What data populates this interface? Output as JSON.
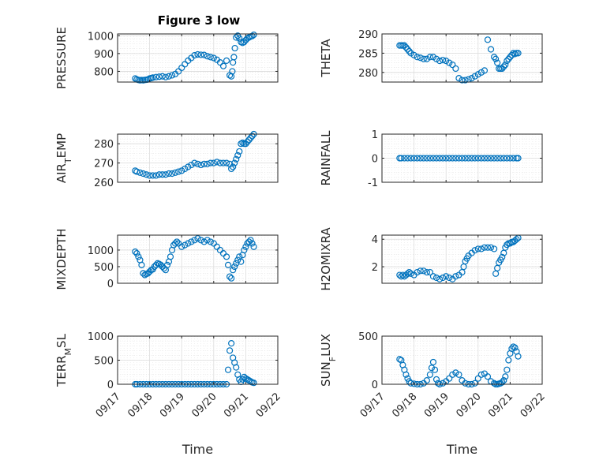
{
  "title": "Figure 3 low",
  "x_tick_labels": [
    "09/17",
    "09/18",
    "09/19",
    "09/20",
    "09/21",
    "09/22"
  ],
  "marker_color": "#0072BD",
  "chart_data": [
    {
      "type": "scatter",
      "ylabel": "PRESSURE",
      "xlabel": "",
      "title": "Figure 3 low",
      "xlim": [
        0,
        5
      ],
      "ylim": [
        740,
        1010
      ],
      "yticks": [
        800,
        900,
        1000
      ],
      "grid": true,
      "x": [
        0.55,
        0.6,
        0.65,
        0.7,
        0.75,
        0.8,
        0.85,
        0.9,
        0.95,
        1.0,
        1.05,
        1.1,
        1.2,
        1.3,
        1.4,
        1.5,
        1.6,
        1.7,
        1.8,
        1.9,
        2.0,
        2.1,
        2.2,
        2.3,
        2.4,
        2.5,
        2.6,
        2.7,
        2.8,
        2.9,
        3.0,
        3.1,
        3.2,
        3.3,
        3.4,
        3.5,
        3.55,
        3.58,
        3.6,
        3.63,
        3.66,
        3.7,
        3.75,
        3.8,
        3.85,
        3.9,
        3.95,
        4.0,
        4.05,
        4.1,
        4.15,
        4.2,
        4.25
      ],
      "y": [
        760,
        755,
        752,
        750,
        751,
        750,
        752,
        753,
        755,
        760,
        762,
        765,
        768,
        770,
        772,
        768,
        772,
        778,
        785,
        800,
        820,
        840,
        860,
        875,
        890,
        895,
        893,
        892,
        885,
        880,
        875,
        865,
        850,
        830,
        860,
        778,
        772,
        800,
        850,
        880,
        930,
        990,
        1000,
        985,
        965,
        960,
        965,
        975,
        985,
        990,
        995,
        998,
        1005
      ]
    },
    {
      "type": "scatter",
      "ylabel": "THETA",
      "xlabel": "",
      "xlim": [
        0,
        5
      ],
      "ylim": [
        277.5,
        290
      ],
      "yticks": [
        280,
        285,
        290
      ],
      "grid": true,
      "x": [
        0.55,
        0.6,
        0.65,
        0.7,
        0.75,
        0.8,
        0.85,
        0.9,
        1.0,
        1.1,
        1.2,
        1.3,
        1.4,
        1.5,
        1.6,
        1.7,
        1.8,
        1.9,
        2.0,
        2.1,
        2.2,
        2.3,
        2.4,
        2.5,
        2.6,
        2.7,
        2.8,
        2.9,
        3.0,
        3.1,
        3.2,
        3.3,
        3.4,
        3.5,
        3.55,
        3.6,
        3.65,
        3.7,
        3.75,
        3.8,
        3.85,
        3.9,
        3.95,
        4.0,
        4.05,
        4.1,
        4.15,
        4.2,
        4.25
      ],
      "y": [
        287,
        287,
        287,
        287,
        286.5,
        286,
        285.5,
        285,
        284.5,
        284,
        283.8,
        283.5,
        283.5,
        284,
        284,
        283.5,
        283,
        283.2,
        283,
        282.5,
        282,
        281,
        278.5,
        278,
        278,
        278.2,
        278.5,
        279,
        279.5,
        280,
        280.5,
        288.5,
        286,
        284,
        283.5,
        282.5,
        281,
        281,
        281,
        281.5,
        282,
        283,
        283.5,
        284,
        284.5,
        285,
        284.8,
        285,
        285
      ]
    },
    {
      "type": "scatter",
      "ylabel": "AIR_TEMP",
      "xlabel": "",
      "xlim": [
        0,
        5
      ],
      "ylim": [
        260,
        285
      ],
      "yticks": [
        260,
        270,
        280
      ],
      "grid": true,
      "x": [
        0.55,
        0.6,
        0.7,
        0.8,
        0.9,
        1.0,
        1.1,
        1.2,
        1.3,
        1.4,
        1.5,
        1.6,
        1.7,
        1.8,
        1.9,
        2.0,
        2.1,
        2.2,
        2.3,
        2.4,
        2.5,
        2.6,
        2.7,
        2.8,
        2.9,
        3.0,
        3.1,
        3.2,
        3.3,
        3.4,
        3.5,
        3.55,
        3.6,
        3.65,
        3.7,
        3.75,
        3.8,
        3.85,
        3.9,
        3.95,
        4.0,
        4.05,
        4.1,
        4.15,
        4.2,
        4.25
      ],
      "y": [
        266,
        265.5,
        265,
        264.5,
        264,
        263.5,
        263.5,
        263.5,
        264,
        264,
        264,
        264.5,
        264.5,
        265,
        265.5,
        266,
        267,
        268,
        269,
        270,
        269.5,
        269,
        269.5,
        269.5,
        270,
        270,
        270.5,
        270,
        270,
        270,
        269.5,
        267,
        268,
        270,
        272,
        274,
        276,
        280,
        280.5,
        280,
        280,
        281,
        282,
        283,
        284,
        285
      ]
    },
    {
      "type": "scatter",
      "ylabel": "RAINFALL",
      "xlabel": "",
      "xlim": [
        0,
        5
      ],
      "ylim": [
        -1,
        1
      ],
      "yticks": [
        -1,
        0,
        1
      ],
      "grid": true,
      "x": [
        0.55,
        0.6,
        0.7,
        0.8,
        0.9,
        1.0,
        1.1,
        1.2,
        1.3,
        1.4,
        1.5,
        1.6,
        1.7,
        1.8,
        1.9,
        2.0,
        2.1,
        2.2,
        2.3,
        2.4,
        2.5,
        2.6,
        2.7,
        2.8,
        2.9,
        3.0,
        3.1,
        3.2,
        3.3,
        3.4,
        3.5,
        3.6,
        3.7,
        3.8,
        3.9,
        4.0,
        4.1,
        4.2,
        4.25
      ],
      "y": [
        0,
        0,
        0,
        0,
        0,
        0,
        0,
        0,
        0,
        0,
        0,
        0,
        0,
        0,
        0,
        0,
        0,
        0,
        0,
        0,
        0,
        0,
        0,
        0,
        0,
        0,
        0,
        0,
        0,
        0,
        0,
        0,
        0,
        0,
        0,
        0,
        0,
        0,
        0
      ]
    },
    {
      "type": "scatter",
      "ylabel": "MIXDEPTH",
      "xlabel": "",
      "xlim": [
        0,
        5
      ],
      "ylim": [
        0,
        1450
      ],
      "yticks": [
        0,
        500,
        1000
      ],
      "grid": true,
      "x": [
        0.55,
        0.6,
        0.65,
        0.7,
        0.75,
        0.8,
        0.85,
        0.9,
        0.95,
        1.0,
        1.05,
        1.1,
        1.15,
        1.2,
        1.25,
        1.3,
        1.35,
        1.4,
        1.45,
        1.5,
        1.55,
        1.6,
        1.65,
        1.7,
        1.75,
        1.8,
        1.85,
        1.9,
        2.0,
        2.1,
        2.2,
        2.3,
        2.4,
        2.5,
        2.6,
        2.7,
        2.8,
        2.9,
        3.0,
        3.1,
        3.2,
        3.3,
        3.4,
        3.45,
        3.5,
        3.55,
        3.6,
        3.65,
        3.7,
        3.75,
        3.8,
        3.85,
        3.9,
        3.95,
        4.0,
        4.05,
        4.1,
        4.15,
        4.2,
        4.25
      ],
      "y": [
        950,
        900,
        800,
        700,
        550,
        300,
        250,
        280,
        300,
        350,
        400,
        420,
        500,
        550,
        600,
        580,
        550,
        500,
        450,
        400,
        550,
        650,
        800,
        1000,
        1150,
        1200,
        1250,
        1200,
        1100,
        1150,
        1200,
        1250,
        1300,
        1350,
        1300,
        1250,
        1300,
        1250,
        1200,
        1100,
        1000,
        900,
        800,
        550,
        200,
        150,
        400,
        500,
        600,
        700,
        800,
        650,
        850,
        1000,
        1100,
        1200,
        1250,
        1300,
        1200,
        1100
      ]
    },
    {
      "type": "scatter",
      "ylabel": "H2OMIXRA",
      "xlabel": "",
      "xlim": [
        0,
        5
      ],
      "ylim": [
        0.8,
        4.3
      ],
      "yticks": [
        2,
        4
      ],
      "grid": true,
      "x": [
        0.55,
        0.6,
        0.65,
        0.7,
        0.75,
        0.8,
        0.85,
        0.9,
        1.0,
        1.1,
        1.2,
        1.3,
        1.4,
        1.5,
        1.6,
        1.7,
        1.8,
        1.9,
        2.0,
        2.1,
        2.2,
        2.3,
        2.4,
        2.5,
        2.55,
        2.6,
        2.65,
        2.7,
        2.8,
        2.9,
        3.0,
        3.1,
        3.2,
        3.3,
        3.4,
        3.5,
        3.55,
        3.6,
        3.65,
        3.7,
        3.75,
        3.8,
        3.85,
        3.9,
        3.95,
        4.0,
        4.05,
        4.1,
        4.15,
        4.2,
        4.25
      ],
      "y": [
        1.4,
        1.3,
        1.4,
        1.3,
        1.4,
        1.5,
        1.6,
        1.5,
        1.4,
        1.6,
        1.7,
        1.7,
        1.6,
        1.6,
        1.3,
        1.2,
        1.1,
        1.2,
        1.3,
        1.2,
        1.1,
        1.3,
        1.4,
        1.6,
        2.0,
        2.4,
        2.6,
        2.8,
        3.0,
        3.2,
        3.3,
        3.3,
        3.4,
        3.4,
        3.4,
        3.3,
        1.5,
        1.9,
        2.3,
        2.5,
        2.7,
        3.0,
        3.4,
        3.6,
        3.7,
        3.7,
        3.8,
        3.8,
        3.9,
        4.0,
        4.1
      ]
    },
    {
      "type": "scatter",
      "ylabel": "TERR_MSL",
      "xlabel": "Time",
      "xlim": [
        0,
        5
      ],
      "ylim": [
        0,
        1000
      ],
      "yticks": [
        0,
        500,
        1000
      ],
      "grid": true,
      "x": [
        0.55,
        0.6,
        0.7,
        0.8,
        0.9,
        1.0,
        1.1,
        1.2,
        1.3,
        1.4,
        1.5,
        1.6,
        1.7,
        1.8,
        1.9,
        2.0,
        2.1,
        2.2,
        2.3,
        2.4,
        2.5,
        2.6,
        2.7,
        2.8,
        2.9,
        3.0,
        3.1,
        3.2,
        3.3,
        3.4,
        3.45,
        3.5,
        3.55,
        3.6,
        3.65,
        3.7,
        3.75,
        3.8,
        3.85,
        3.9,
        3.95,
        4.0,
        4.05,
        4.1,
        4.15,
        4.2,
        4.25
      ],
      "y": [
        0,
        0,
        0,
        0,
        0,
        0,
        0,
        0,
        0,
        0,
        0,
        0,
        0,
        0,
        0,
        0,
        0,
        0,
        0,
        0,
        0,
        0,
        0,
        0,
        0,
        0,
        0,
        0,
        0,
        0,
        300,
        700,
        850,
        550,
        450,
        350,
        200,
        100,
        50,
        100,
        150,
        120,
        100,
        80,
        60,
        40,
        30
      ]
    },
    {
      "type": "scatter",
      "ylabel": "SUN_FLUX",
      "xlabel": "Time",
      "xlim": [
        0,
        5
      ],
      "ylim": [
        0,
        500
      ],
      "yticks": [
        0,
        500
      ],
      "grid": true,
      "x": [
        0.55,
        0.6,
        0.65,
        0.7,
        0.75,
        0.8,
        0.85,
        0.9,
        1.0,
        1.1,
        1.2,
        1.3,
        1.4,
        1.5,
        1.55,
        1.6,
        1.65,
        1.7,
        1.75,
        1.8,
        1.9,
        2.0,
        2.1,
        2.2,
        2.3,
        2.4,
        2.5,
        2.6,
        2.7,
        2.8,
        2.9,
        3.0,
        3.1,
        3.2,
        3.3,
        3.4,
        3.5,
        3.55,
        3.6,
        3.65,
        3.7,
        3.75,
        3.8,
        3.85,
        3.9,
        3.95,
        4.0,
        4.05,
        4.1,
        4.15,
        4.2,
        4.25
      ],
      "y": [
        260,
        250,
        200,
        150,
        100,
        60,
        30,
        10,
        5,
        0,
        0,
        10,
        40,
        100,
        170,
        230,
        150,
        50,
        10,
        0,
        10,
        30,
        60,
        100,
        120,
        100,
        40,
        10,
        0,
        0,
        10,
        60,
        100,
        110,
        80,
        30,
        10,
        0,
        0,
        5,
        10,
        20,
        40,
        80,
        150,
        250,
        320,
        370,
        390,
        380,
        340,
        290
      ]
    }
  ]
}
